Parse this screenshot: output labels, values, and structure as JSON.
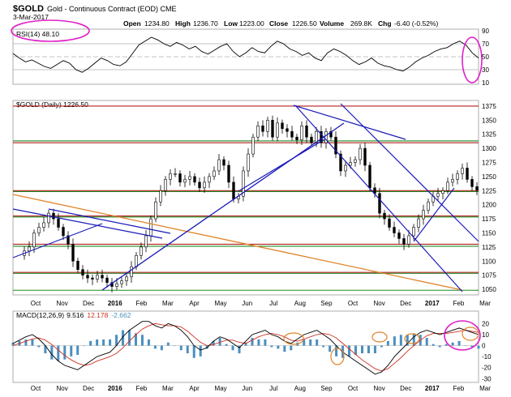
{
  "header": {
    "symbol": "$GOLD",
    "description": "Gold - Continuous Contract (EOD) CME",
    "date": "3-Mar-2017",
    "open_label": "Open",
    "open": "1234.80",
    "high_label": "High",
    "high": "1236.70",
    "low_label": "Low",
    "low": "1223.00",
    "close_label": "Close",
    "close": "1226.50",
    "volume_label": "Volume",
    "volume": "269.8K",
    "chg_label": "Chg",
    "chg": "-6.40 (-0.52%)"
  },
  "colors": {
    "price": "#000000",
    "trendline": "#1a1ab8",
    "resistance": "#b42020",
    "support": "#1f8a1f",
    "long_trend": "#e0832a",
    "annotation": "#e020c8",
    "macd_hist": "#4a8fc0",
    "signal": "#d03020"
  },
  "months": [
    "Oct",
    "Nov",
    "Dec",
    "2016",
    "Feb",
    "Mar",
    "Apr",
    "May",
    "Jun",
    "Jul",
    "Aug",
    "Sep",
    "Oct",
    "Nov",
    "Dec",
    "2017",
    "Feb",
    "Mar"
  ],
  "chart_data": [
    {
      "type": "line",
      "panel": "RSI",
      "legend": "RSI(14) 48.10",
      "ylim": [
        10,
        90
      ],
      "y_ticks": [
        90,
        70,
        50,
        30,
        10
      ],
      "reference_levels": [
        70,
        30
      ],
      "series": [
        {
          "values": [
            55,
            48,
            42,
            45,
            40,
            35,
            32,
            38,
            44,
            40,
            30,
            26,
            32,
            40,
            48,
            44,
            38,
            36,
            42,
            55,
            68,
            74,
            80,
            76,
            70,
            66,
            72,
            68,
            62,
            66,
            58,
            54,
            60,
            66,
            70,
            58,
            50,
            56,
            64,
            58,
            56,
            66,
            74,
            70,
            62,
            58,
            52,
            56,
            48,
            44,
            56,
            62,
            58,
            52,
            44,
            38,
            42,
            48,
            40,
            36,
            34,
            30,
            28,
            34,
            42,
            48,
            52,
            58,
            62,
            64,
            70,
            74,
            68,
            56,
            48
          ]
        }
      ]
    },
    {
      "type": "candlestick",
      "panel": "Price",
      "legend": "$GOLD (Daily) 1226.50",
      "ylim": [
        1040,
        1385
      ],
      "y_ticks": [
        1375,
        1350,
        1325,
        1300,
        1275,
        1250,
        1225,
        1200,
        1175,
        1150,
        1125,
        1100,
        1075,
        1050
      ],
      "series": [
        {
          "values": [
            1110,
            1118,
            1125,
            1150,
            1160,
            1168,
            1185,
            1175,
            1160,
            1145,
            1130,
            1100,
            1085,
            1075,
            1070,
            1068,
            1075,
            1070,
            1062,
            1055,
            1060,
            1065,
            1072,
            1090,
            1110,
            1125,
            1145,
            1175,
            1205,
            1225,
            1245,
            1255,
            1255,
            1240,
            1245,
            1250,
            1240,
            1230,
            1240,
            1250,
            1260,
            1280,
            1270,
            1240,
            1210,
            1215,
            1260,
            1290,
            1320,
            1340,
            1330,
            1350,
            1320,
            1345,
            1335,
            1330,
            1320,
            1315,
            1340,
            1320,
            1310,
            1330,
            1310,
            1330,
            1320,
            1290,
            1260,
            1270,
            1275,
            1280,
            1300,
            1270,
            1230,
            1220,
            1185,
            1175,
            1160,
            1150,
            1140,
            1130,
            1145,
            1160,
            1175,
            1190,
            1205,
            1215,
            1220,
            1225,
            1240,
            1245,
            1255,
            1265,
            1245,
            1232,
            1226
          ]
        }
      ],
      "horizontal_levels": [
        {
          "value": 1375,
          "kind": "resistance"
        },
        {
          "value": 1310,
          "kind": "resistance"
        },
        {
          "value": 1225,
          "kind": "resistance"
        },
        {
          "value": 1180,
          "kind": "resistance"
        },
        {
          "value": 1130,
          "kind": "resistance"
        },
        {
          "value": 1080,
          "kind": "resistance"
        },
        {
          "value": 1315,
          "kind": "support"
        },
        {
          "value": 1225,
          "kind": "support"
        },
        {
          "value": 1180,
          "kind": "support"
        },
        {
          "value": 1128,
          "kind": "support"
        },
        {
          "value": 1080,
          "kind": "support"
        },
        {
          "value": 1050,
          "kind": "support"
        }
      ]
    },
    {
      "type": "line",
      "panel": "MACD",
      "legend": "MACD(12,26,9)",
      "legend_macd": "9.516",
      "legend_signal": "12.178",
      "legend_hist": "-2.662",
      "ylim": [
        -32,
        24
      ],
      "y_ticks": [
        20,
        10,
        0,
        -10,
        -20,
        -30
      ],
      "series": [
        {
          "name": "MACD",
          "values": [
            2,
            5,
            8,
            10,
            6,
            0,
            -8,
            -14,
            -18,
            -20,
            -22,
            -18,
            -14,
            -10,
            -8,
            -6,
            0,
            8,
            14,
            18,
            22,
            22,
            18,
            16,
            20,
            18,
            14,
            8,
            0,
            -4,
            -2,
            4,
            8,
            6,
            2,
            -2,
            4,
            10,
            12,
            14,
            10,
            8,
            4,
            2,
            6,
            10,
            12,
            14,
            10,
            6,
            0,
            -6,
            -10,
            -14,
            -18,
            -22,
            -26,
            -24,
            -18,
            -10,
            -4,
            2,
            8,
            12,
            14,
            12,
            10,
            12,
            14,
            16,
            14,
            12,
            10
          ]
        },
        {
          "name": "Signal",
          "values": [
            0,
            2,
            4,
            6,
            7,
            5,
            1,
            -4,
            -9,
            -13,
            -16,
            -18,
            -17,
            -14,
            -12,
            -10,
            -7,
            -2,
            4,
            10,
            15,
            18,
            20,
            19,
            18,
            18,
            17,
            13,
            8,
            3,
            0,
            1,
            3,
            5,
            5,
            3,
            2,
            5,
            8,
            10,
            11,
            10,
            8,
            5,
            4,
            6,
            8,
            10,
            11,
            10,
            7,
            2,
            -3,
            -8,
            -13,
            -17,
            -21,
            -23,
            -21,
            -16,
            -11,
            -5,
            0,
            5,
            9,
            11,
            11,
            11,
            12,
            13,
            14,
            13,
            12
          ]
        }
      ]
    }
  ]
}
